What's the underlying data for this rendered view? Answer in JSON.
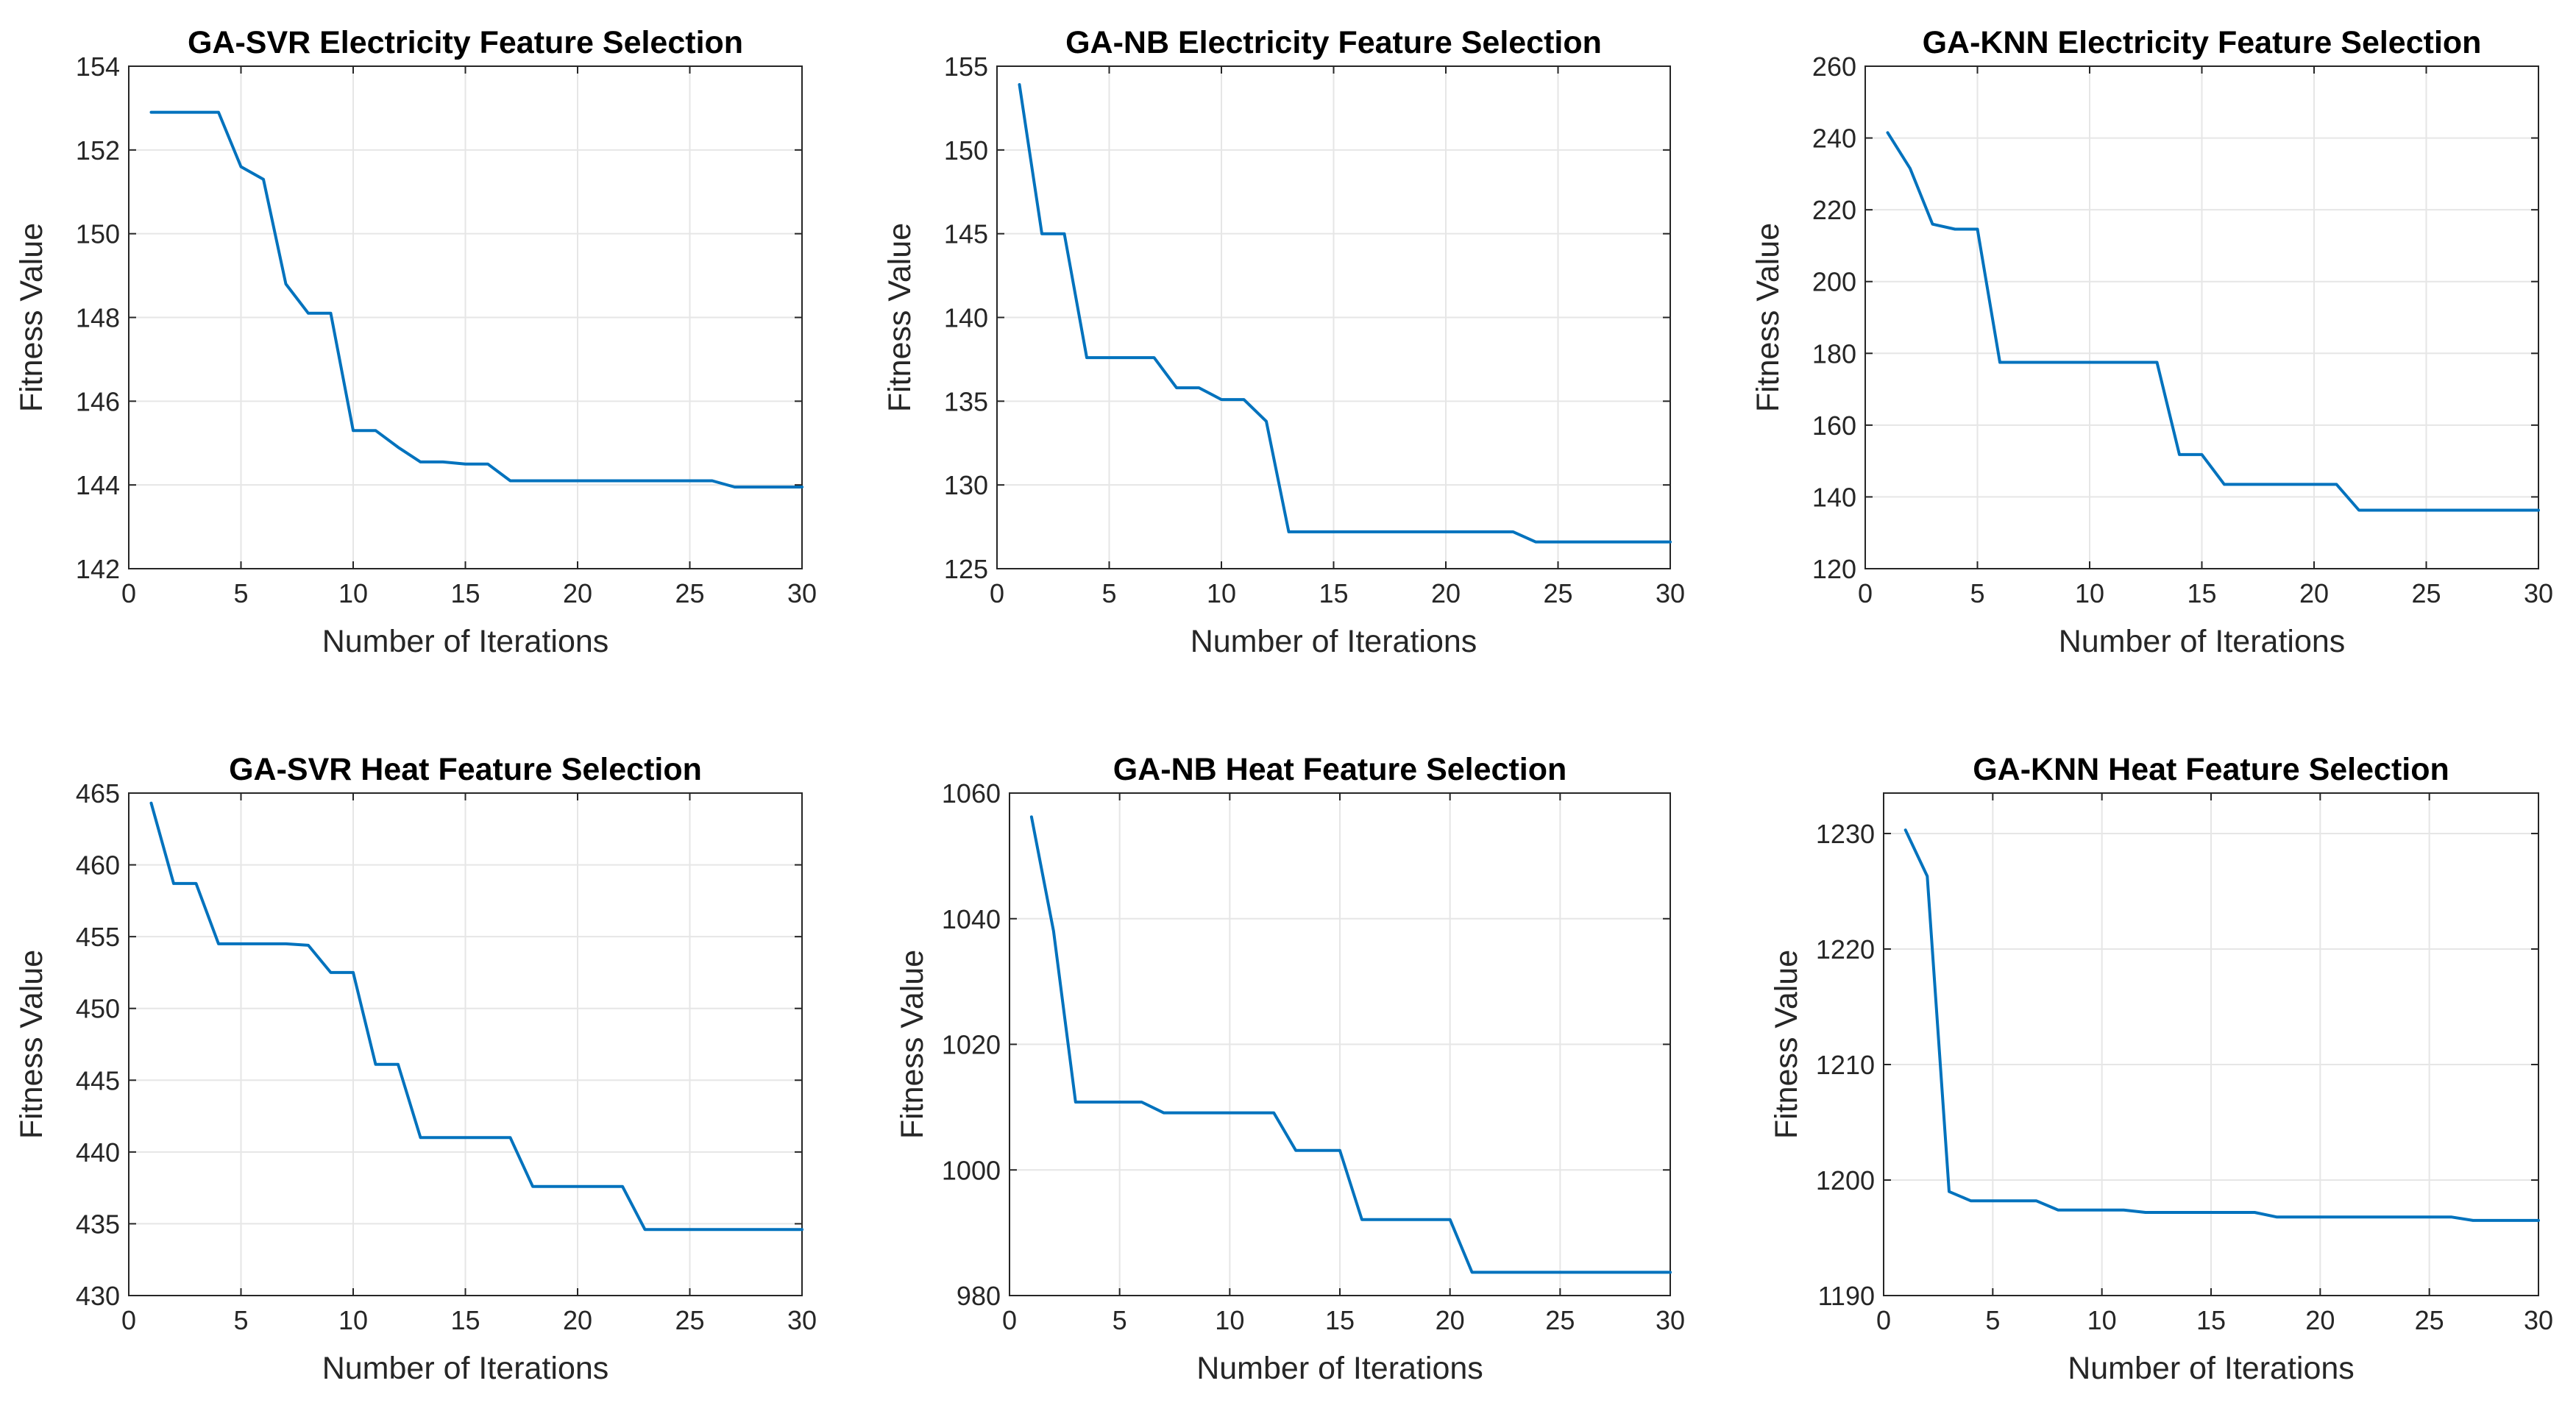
{
  "chart_data": [
    {
      "type": "line",
      "title": "GA-SVR Electricity Feature Selection",
      "xlabel": "Number of Iterations",
      "ylabel": "Fitness Value",
      "xlim": [
        0,
        30
      ],
      "ylim": [
        142,
        154
      ],
      "xticks": [
        0,
        5,
        10,
        15,
        20,
        25,
        30
      ],
      "yticks": [
        142,
        144,
        146,
        148,
        150,
        152,
        154
      ],
      "grid": true,
      "color": "#0072BD",
      "series": [
        {
          "name": "fitness",
          "x": [
            1,
            2,
            3,
            4,
            5,
            6,
            7,
            8,
            9,
            10,
            11,
            12,
            13,
            14,
            15,
            16,
            17,
            18,
            19,
            20,
            21,
            22,
            23,
            24,
            25,
            26,
            27,
            28,
            29,
            30
          ],
          "values": [
            152.9,
            152.9,
            152.9,
            152.9,
            151.6,
            151.3,
            148.8,
            148.1,
            148.1,
            145.3,
            145.3,
            144.9,
            144.55,
            144.55,
            144.5,
            144.5,
            144.1,
            144.1,
            144.1,
            144.1,
            144.1,
            144.1,
            144.1,
            144.1,
            144.1,
            144.1,
            143.95,
            143.95,
            143.95,
            143.95
          ]
        }
      ]
    },
    {
      "type": "line",
      "title": "GA-NB Electricity Feature Selection",
      "xlabel": "Number of Iterations",
      "ylabel": "Fitness Value",
      "xlim": [
        0,
        30
      ],
      "ylim": [
        125,
        155
      ],
      "xticks": [
        0,
        5,
        10,
        15,
        20,
        25,
        30
      ],
      "yticks": [
        125,
        130,
        135,
        140,
        145,
        150,
        155
      ],
      "grid": true,
      "color": "#0072BD",
      "series": [
        {
          "name": "fitness",
          "x": [
            1,
            2,
            3,
            4,
            5,
            6,
            7,
            8,
            9,
            10,
            11,
            12,
            13,
            14,
            15,
            16,
            17,
            18,
            19,
            20,
            21,
            22,
            23,
            24,
            25,
            26,
            27,
            28,
            29,
            30
          ],
          "values": [
            153.9,
            145.0,
            145.0,
            137.6,
            137.6,
            137.6,
            137.6,
            135.8,
            135.8,
            135.1,
            135.1,
            133.8,
            127.2,
            127.2,
            127.2,
            127.2,
            127.2,
            127.2,
            127.2,
            127.2,
            127.2,
            127.2,
            127.2,
            126.6,
            126.6,
            126.6,
            126.6,
            126.6,
            126.6,
            126.6
          ]
        }
      ]
    },
    {
      "type": "line",
      "title": "GA-KNN Electricity Feature Selection",
      "xlabel": "Number of Iterations",
      "ylabel": "Fitness Value",
      "xlim": [
        0,
        30
      ],
      "ylim": [
        120,
        260
      ],
      "xticks": [
        0,
        5,
        10,
        15,
        20,
        25,
        30
      ],
      "yticks": [
        120,
        140,
        160,
        180,
        200,
        220,
        240,
        260
      ],
      "grid": true,
      "color": "#0072BD",
      "series": [
        {
          "name": "fitness",
          "x": [
            1,
            2,
            3,
            4,
            5,
            6,
            7,
            8,
            9,
            10,
            11,
            12,
            13,
            14,
            15,
            16,
            17,
            18,
            19,
            20,
            21,
            22,
            23,
            24,
            25,
            26,
            27,
            28,
            29,
            30
          ],
          "values": [
            241.5,
            231.5,
            216.0,
            214.6,
            214.6,
            177.5,
            177.5,
            177.5,
            177.5,
            177.5,
            177.5,
            177.5,
            177.5,
            151.8,
            151.8,
            143.5,
            143.5,
            143.5,
            143.5,
            143.5,
            143.5,
            136.3,
            136.3,
            136.3,
            136.3,
            136.3,
            136.3,
            136.3,
            136.3,
            136.3
          ]
        }
      ]
    },
    {
      "type": "line",
      "title": "GA-SVR Heat Feature Selection",
      "xlabel": "Number of Iterations",
      "ylabel": "Fitness Value",
      "xlim": [
        0,
        30
      ],
      "ylim": [
        430,
        465
      ],
      "xticks": [
        0,
        5,
        10,
        15,
        20,
        25,
        30
      ],
      "yticks": [
        430,
        435,
        440,
        445,
        450,
        455,
        460,
        465
      ],
      "grid": true,
      "color": "#0072BD",
      "series": [
        {
          "name": "fitness",
          "x": [
            1,
            2,
            3,
            4,
            5,
            6,
            7,
            8,
            9,
            10,
            11,
            12,
            13,
            14,
            15,
            16,
            17,
            18,
            19,
            20,
            21,
            22,
            23,
            24,
            25,
            26,
            27,
            28,
            29,
            30
          ],
          "values": [
            464.3,
            458.7,
            458.7,
            454.5,
            454.5,
            454.5,
            454.5,
            454.4,
            452.5,
            452.5,
            446.1,
            446.1,
            441.0,
            441.0,
            441.0,
            441.0,
            441.0,
            437.6,
            437.6,
            437.6,
            437.6,
            437.6,
            434.6,
            434.6,
            434.6,
            434.6,
            434.6,
            434.6,
            434.6,
            434.6
          ]
        }
      ]
    },
    {
      "type": "line",
      "title": "GA-NB Heat Feature Selection",
      "xlabel": "Number of Iterations",
      "ylabel": "Fitness Value",
      "xlim": [
        0,
        30
      ],
      "ylim": [
        980,
        1060
      ],
      "xticks": [
        0,
        5,
        10,
        15,
        20,
        25,
        30
      ],
      "yticks": [
        980,
        1000,
        1020,
        1040,
        1060
      ],
      "grid": true,
      "color": "#0072BD",
      "series": [
        {
          "name": "fitness",
          "x": [
            1,
            2,
            3,
            4,
            5,
            6,
            7,
            8,
            9,
            10,
            11,
            12,
            13,
            14,
            15,
            16,
            17,
            18,
            19,
            20,
            21,
            22,
            23,
            24,
            25,
            26,
            27,
            28,
            29,
            30
          ],
          "values": [
            1056.2,
            1038.0,
            1010.8,
            1010.8,
            1010.8,
            1010.8,
            1009.1,
            1009.1,
            1009.1,
            1009.1,
            1009.1,
            1009.1,
            1003.1,
            1003.1,
            1003.1,
            992.1,
            992.1,
            992.1,
            992.1,
            992.1,
            983.7,
            983.7,
            983.7,
            983.7,
            983.7,
            983.7,
            983.7,
            983.7,
            983.7,
            983.7
          ]
        }
      ]
    },
    {
      "type": "line",
      "title": "GA-KNN Heat Feature Selection",
      "xlabel": "Number of Iterations",
      "ylabel": "Fitness Value",
      "xlim": [
        0,
        30
      ],
      "ylim": [
        1190,
        1233.5
      ],
      "xticks": [
        0,
        5,
        10,
        15,
        20,
        25,
        30
      ],
      "yticks": [
        1190,
        1200,
        1210,
        1220,
        1230
      ],
      "grid": true,
      "color": "#0072BD",
      "series": [
        {
          "name": "fitness",
          "x": [
            1,
            2,
            3,
            4,
            5,
            6,
            7,
            8,
            9,
            10,
            11,
            12,
            13,
            14,
            15,
            16,
            17,
            18,
            19,
            20,
            21,
            22,
            23,
            24,
            25,
            26,
            27,
            28,
            29,
            30
          ],
          "values": [
            1230.3,
            1226.3,
            1199.0,
            1198.2,
            1198.2,
            1198.2,
            1198.2,
            1197.4,
            1197.4,
            1197.4,
            1197.4,
            1197.2,
            1197.2,
            1197.2,
            1197.2,
            1197.2,
            1197.2,
            1196.8,
            1196.8,
            1196.8,
            1196.8,
            1196.8,
            1196.8,
            1196.8,
            1196.8,
            1196.8,
            1196.5,
            1196.5,
            1196.5,
            1196.5
          ]
        }
      ]
    }
  ]
}
